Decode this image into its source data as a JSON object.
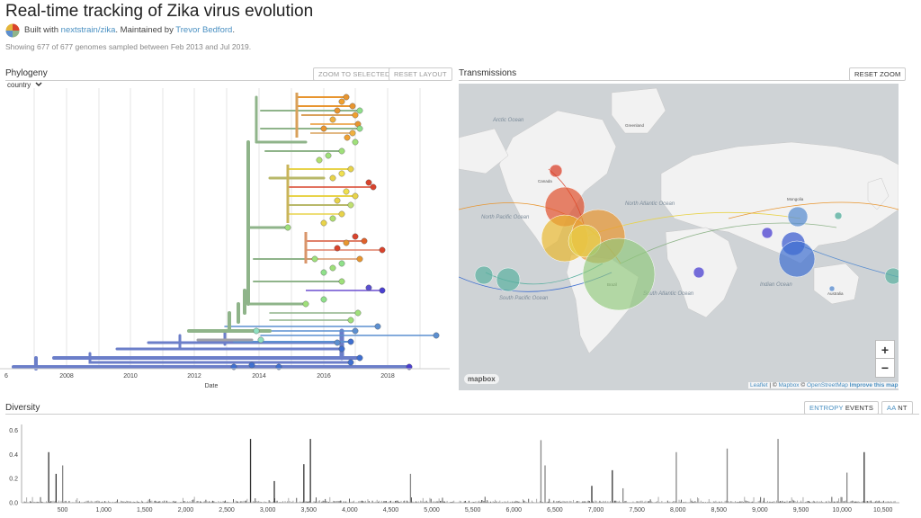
{
  "header": {
    "title": "Real-time tracking of Zika virus evolution",
    "built_prefix": "Built with ",
    "built_link": "nextstrain/zika",
    "maintained_prefix": ". Maintained by ",
    "maintainer": "Trevor Bedford",
    "maintained_suffix": ".",
    "showing": "Showing 677 of 677 genomes sampled between Feb 2013 and Jul 2019."
  },
  "phylogeny": {
    "title": "Phylogeny",
    "color_by": "country",
    "zoom_to_selected": "ZOOM TO SELECTED",
    "reset_layout": "RESET LAYOUT",
    "x_axis_label": "Date",
    "x_ticks": [
      "2008",
      "2010",
      "2012",
      "2014",
      "2016",
      "2018"
    ],
    "left_tick_fragment": "6"
  },
  "transmissions": {
    "title": "Transmissions",
    "reset_zoom": "RESET ZOOM",
    "zoom_in": "+",
    "zoom_out": "−",
    "attribution_leaflet": "Leaflet",
    "attribution_sep1": " | © ",
    "attribution_mapbox": "Mapbox",
    "attribution_sep2": " © ",
    "attribution_osm": "OpenStreetMap",
    "attribution_improve": "Improve this map",
    "mapbox_logo": "mapbox",
    "ocean_labels": [
      "Arctic Ocean",
      "North Pacific Ocean",
      "North Atlantic Ocean",
      "South Pacific Ocean",
      "South Atlantic Ocean",
      "Indian Ocean"
    ],
    "place_labels": [
      "Greenland",
      "Canada",
      "Brazil",
      "Mongolia",
      "Australia"
    ]
  },
  "diversity": {
    "title": "Diversity",
    "entropy": "ENTROPY",
    "events": "EVENTS",
    "aa": "AA",
    "nt": "NT"
  },
  "chart_data": {
    "type": "bar",
    "title": "",
    "xlabel": "",
    "ylabel": "",
    "xlim": [
      0,
      10700
    ],
    "ylim": [
      0,
      0.65
    ],
    "x_ticks": [
      500,
      1000,
      1500,
      2000,
      2500,
      3000,
      3500,
      4000,
      4500,
      5000,
      5500,
      6000,
      6500,
      7000,
      7500,
      8000,
      8500,
      9000,
      9500,
      10000,
      10500
    ],
    "x_tick_labels": [
      "500",
      "1,000",
      "1,500",
      "2,000",
      "2,500",
      "3,000",
      "3,500",
      "4,000",
      "4,500",
      "5,000",
      "5,500",
      "6,000",
      "6,500",
      "7,000",
      "7,500",
      "8,000",
      "8,500",
      "9,000",
      "9,500",
      "10,000",
      "10,500"
    ],
    "y_ticks": [
      0.0,
      0.2,
      0.4,
      0.6
    ],
    "y_tick_labels": [
      "0.0",
      "0.2",
      "0.4",
      "0.6"
    ],
    "peaks": [
      {
        "x": 330,
        "y": 0.42,
        "dark": true
      },
      {
        "x": 420,
        "y": 0.24,
        "dark": true
      },
      {
        "x": 500,
        "y": 0.31,
        "dark": false
      },
      {
        "x": 2790,
        "y": 0.53,
        "dark": true
      },
      {
        "x": 3080,
        "y": 0.18,
        "dark": true
      },
      {
        "x": 3440,
        "y": 0.32,
        "dark": true
      },
      {
        "x": 3520,
        "y": 0.53,
        "dark": true
      },
      {
        "x": 4740,
        "y": 0.24,
        "dark": false
      },
      {
        "x": 6330,
        "y": 0.52,
        "dark": false
      },
      {
        "x": 6380,
        "y": 0.31,
        "dark": false
      },
      {
        "x": 6950,
        "y": 0.14,
        "dark": true
      },
      {
        "x": 7200,
        "y": 0.27,
        "dark": true
      },
      {
        "x": 7330,
        "y": 0.12,
        "dark": false
      },
      {
        "x": 7980,
        "y": 0.42,
        "dark": false
      },
      {
        "x": 8600,
        "y": 0.45,
        "dark": false
      },
      {
        "x": 9220,
        "y": 0.53,
        "dark": false
      },
      {
        "x": 10060,
        "y": 0.25,
        "dark": false
      },
      {
        "x": 10270,
        "y": 0.42,
        "dark": true
      }
    ]
  },
  "colors": {
    "accent": "#4a90c2",
    "tree_root": "#6b7ec9",
    "tree_green": "#8fb48a",
    "tree_orange": "#e8952f",
    "tree_yellow": "#e8d34a",
    "tree_red": "#d9432c",
    "map_land": "#f2f2f2",
    "map_water": "#cfd3d6"
  }
}
